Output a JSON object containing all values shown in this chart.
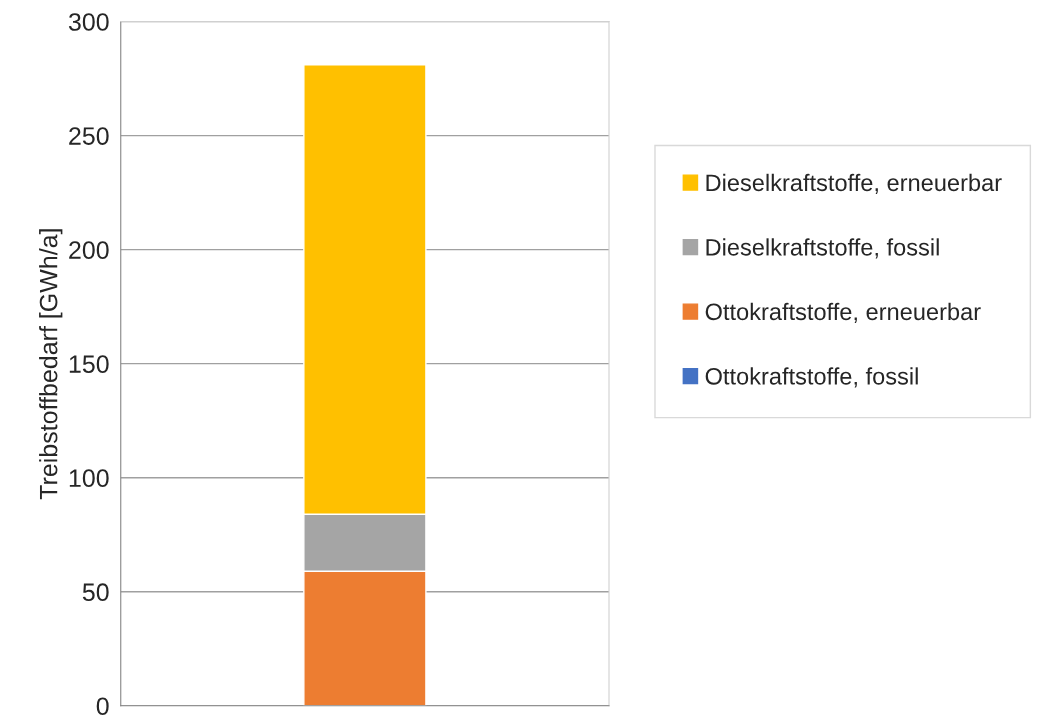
{
  "chart_data": {
    "type": "bar",
    "ylabel": "Treibstoffbedarf [GWh/a]",
    "categories": [
      null
    ],
    "stacked": true,
    "series": [
      {
        "name": "Ottokraftstoffe, fossil",
        "color": "#4472c4",
        "values": [
          0
        ]
      },
      {
        "name": "Ottokraftstoffe, erneuerbar",
        "color": "#ed7d31",
        "values": [
          59
        ]
      },
      {
        "name": "Dieselkraftstoffe, fossil",
        "color": "#a5a5a5",
        "values": [
          25
        ]
      },
      {
        "name": "Dieselkraftstoffe, erneuerbar",
        "color": "#ffc000",
        "values": [
          197
        ]
      }
    ],
    "ylim": [
      0,
      300
    ],
    "yticks": [
      0,
      50,
      100,
      150,
      200,
      250,
      300
    ],
    "grid": "y",
    "legend": "right",
    "tick_labels": "y"
  }
}
